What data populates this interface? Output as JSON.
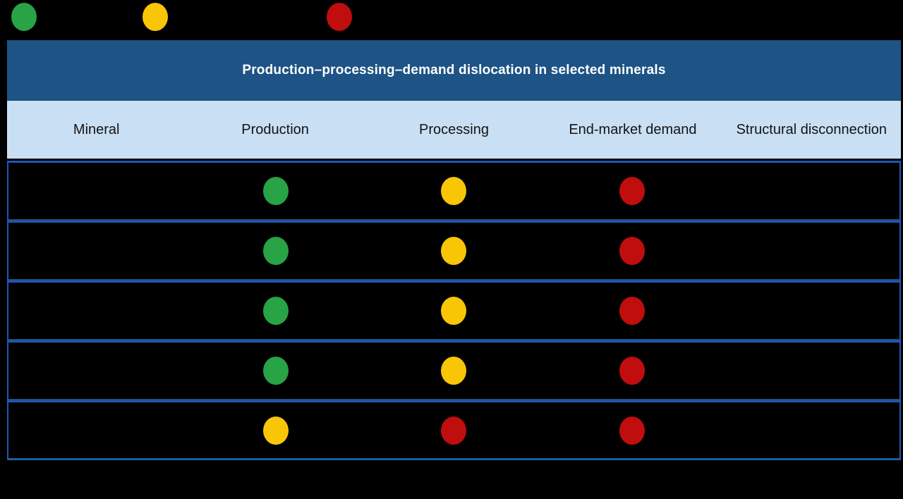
{
  "legend": {
    "items": [
      {
        "name": "green-dot",
        "color_key": "green"
      },
      {
        "name": "yellow-dot",
        "color_key": "yellow"
      },
      {
        "name": "red-dot",
        "color_key": "red"
      }
    ]
  },
  "chart_data": {
    "type": "table",
    "title": "Production–processing–demand dislocation in selected minerals",
    "columns": [
      "Mineral",
      "Production",
      "Processing",
      "End-market demand",
      "Structural disconnection"
    ],
    "legend_colors": {
      "green": "#28a346",
      "yellow": "#f9c606",
      "red": "#c00d0d"
    },
    "rows": [
      {
        "mineral": "",
        "production": "green",
        "processing": "yellow",
        "end_market_demand": "red",
        "structural_disconnection": ""
      },
      {
        "mineral": "",
        "production": "green",
        "processing": "yellow",
        "end_market_demand": "red",
        "structural_disconnection": ""
      },
      {
        "mineral": "",
        "production": "green",
        "processing": "yellow",
        "end_market_demand": "red",
        "structural_disconnection": ""
      },
      {
        "mineral": "",
        "production": "green",
        "processing": "yellow",
        "end_market_demand": "red",
        "structural_disconnection": ""
      },
      {
        "mineral": "",
        "production": "yellow",
        "processing": "red",
        "end_market_demand": "red",
        "structural_disconnection": ""
      }
    ],
    "layout": {
      "background": "#000000",
      "title_bar_bg": "#1d5385",
      "title_text_color": "#ffffff",
      "header_bg": "#c9dff4",
      "header_text_color": "#141414",
      "row_bg": "#000000",
      "row_border_bright": "#2355b2",
      "row_border_muted": "#1d5480"
    }
  }
}
